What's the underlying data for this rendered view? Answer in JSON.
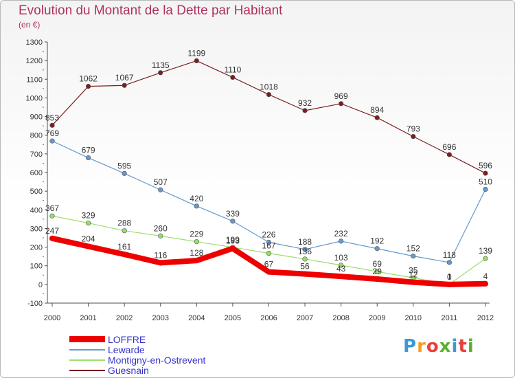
{
  "colors": {
    "title": "#b03060",
    "legend_text": "#3333cc",
    "grid": "#cccccc",
    "axis": "#4d4d4d"
  },
  "logo": {
    "text": "Proxiti",
    "letter_colors": [
      "#3a9ad9",
      "#f0a020",
      "#e8403a",
      "#5ab030",
      "#3a9ad9",
      "#e8403a",
      "#5ab030"
    ]
  },
  "chart_data": {
    "type": "line",
    "title": "Evolution du Montant de la Dette par Habitant",
    "subtitle": "(en €)",
    "xlabel": "",
    "ylabel": "",
    "x": [
      "2000",
      "2001",
      "2002",
      "2003",
      "2004",
      "2005",
      "2006",
      "2007",
      "2008",
      "2009",
      "2010",
      "2011",
      "2012"
    ],
    "ylim": [
      -100,
      1300
    ],
    "yticks": [
      -100,
      0,
      100,
      200,
      300,
      400,
      500,
      600,
      700,
      800,
      900,
      1000,
      1100,
      1200,
      1300
    ],
    "grid": false,
    "legend_position": "bottom-left",
    "series": [
      {
        "name": "LOFFRE",
        "color": "#ee0000",
        "thick": true,
        "values": [
          247,
          204,
          161,
          116,
          128,
          193,
          67,
          56,
          43,
          29,
          12,
          0,
          4
        ],
        "labels": [
          "247",
          "204",
          "161",
          "116",
          "128",
          "193",
          "67",
          "56",
          "43",
          "29",
          "12",
          "0",
          "4"
        ]
      },
      {
        "name": "Lewarde",
        "color": "#6699cc",
        "thick": false,
        "values": [
          769,
          679,
          595,
          507,
          420,
          339,
          226,
          188,
          232,
          192,
          152,
          118,
          510
        ],
        "labels": [
          "769",
          "679",
          "595",
          "507",
          "420",
          "339",
          "226",
          "188",
          "232",
          "192",
          "152",
          "118",
          "510"
        ]
      },
      {
        "name": "Montigny-en-Ostrevent",
        "color": "#99dd66",
        "thick": false,
        "values": [
          367,
          329,
          288,
          260,
          229,
          199,
          167,
          136,
          103,
          69,
          35,
          1,
          139
        ],
        "labels": [
          "367",
          "329",
          "288",
          "260",
          "229",
          "199",
          "167",
          "136",
          "103",
          "69",
          "35",
          "1",
          "139"
        ]
      },
      {
        "name": "Guesnain",
        "color": "#7a1f1f",
        "thick": false,
        "values": [
          853,
          1062,
          1067,
          1135,
          1199,
          1110,
          1018,
          932,
          969,
          894,
          793,
          696,
          596
        ],
        "labels": [
          "853",
          "1062",
          "1067",
          "1135",
          "1199",
          "1110",
          "1018",
          "932",
          "969",
          "894",
          "793",
          "696",
          "596"
        ]
      }
    ]
  }
}
